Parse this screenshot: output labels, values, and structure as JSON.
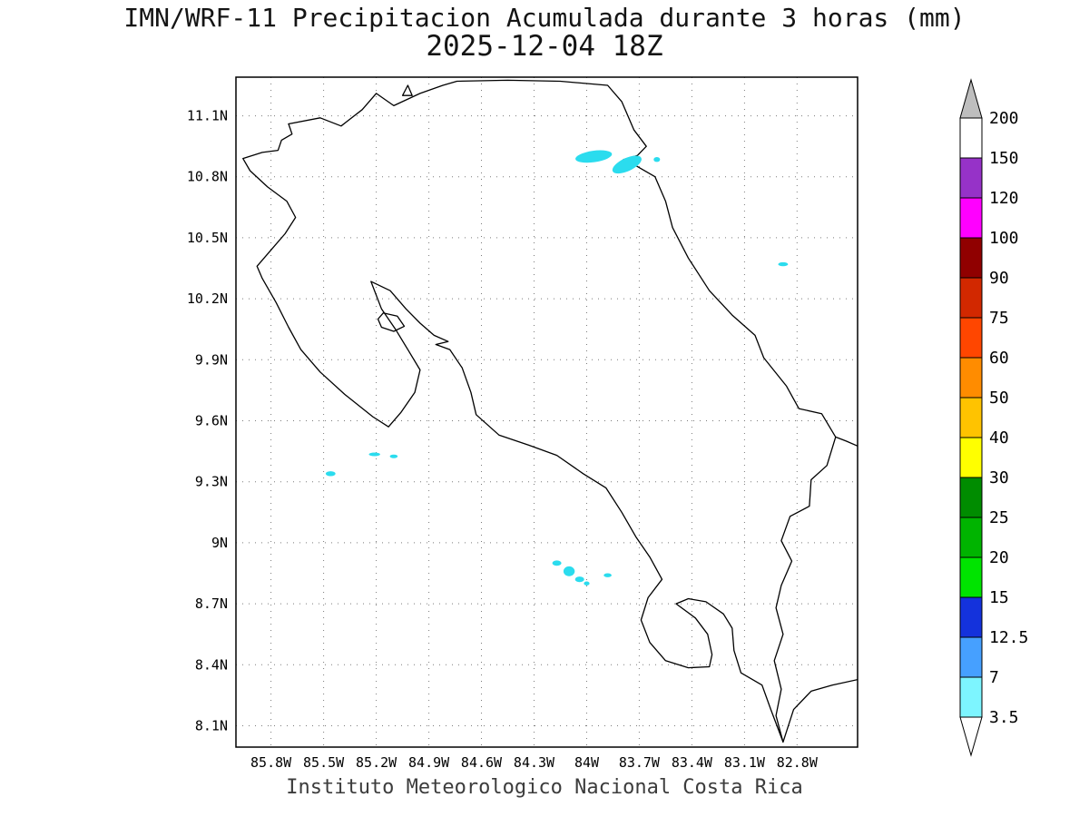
{
  "title": {
    "line1": "IMN/WRF-11 Precipitacion Acumulada durante 3 horas (mm)",
    "line2": "2025-12-04 18Z"
  },
  "caption": "Instituto Meteorologico Nacional Costa Rica",
  "chart_data": {
    "type": "heatmap",
    "title": "IMN/WRF-11 Precipitacion Acumulada durante 3 horas (mm)",
    "subtitle": "2025-12-04 18Z",
    "region": "Costa Rica",
    "units": "mm",
    "lon_range_w": [
      86.0,
      82.455
    ],
    "lat_range_n": [
      7.995,
      11.29
    ],
    "x_axis": {
      "ticks": [
        "85.8W",
        "85.5W",
        "85.2W",
        "84.9W",
        "84.6W",
        "84.3W",
        "84W",
        "83.7W",
        "83.4W",
        "83.1W",
        "82.8W"
      ],
      "values": [
        85.8,
        85.5,
        85.2,
        84.9,
        84.6,
        84.3,
        84.0,
        83.7,
        83.4,
        83.1,
        82.8
      ]
    },
    "y_axis": {
      "ticks": [
        "11.1N",
        "10.8N",
        "10.5N",
        "10.2N",
        "9.9N",
        "9.6N",
        "9.3N",
        "9N",
        "8.7N",
        "8.4N",
        "8.1N"
      ],
      "values": [
        11.1,
        10.8,
        10.5,
        10.2,
        9.9,
        9.6,
        9.3,
        9.0,
        8.7,
        8.4,
        8.1
      ]
    },
    "colorbar": {
      "levels": [
        3.5,
        7,
        12.5,
        15,
        20,
        25,
        30,
        40,
        50,
        60,
        75,
        90,
        100,
        120,
        150,
        200
      ],
      "labels": [
        "3.5",
        "7",
        "12.5",
        "15",
        "20",
        "25",
        "30",
        "40",
        "50",
        "60",
        "75",
        "90",
        "100",
        "120",
        "150",
        "200"
      ],
      "segment_colors": [
        "#7DF5FF",
        "#46A0FF",
        "#1432DC",
        "#00E400",
        "#00B400",
        "#008C00",
        "#FFFF00",
        "#FFC300",
        "#FF8C00",
        "#FF4600",
        "#D22800",
        "#900000",
        "#FF00FF",
        "#9632C8",
        "#FFFFFF"
      ],
      "under_color": "#FFFFFF",
      "over_color": "#BEBEBE"
    },
    "patch_color": "#2BDCEE",
    "patch_value_range_mm": "3.5-7",
    "precipitation_patches": [
      {
        "lon": 83.96,
        "lat": 10.9,
        "rx": 0.105,
        "ry": 0.028,
        "rot": -8
      },
      {
        "lon": 83.77,
        "lat": 10.86,
        "rx": 0.09,
        "ry": 0.032,
        "rot": -25
      },
      {
        "lon": 83.6,
        "lat": 10.885,
        "rx": 0.018,
        "ry": 0.012,
        "rot": 0
      },
      {
        "lon": 82.88,
        "lat": 10.37,
        "rx": 0.028,
        "ry": 0.01,
        "rot": 0
      },
      {
        "lon": 85.21,
        "lat": 9.435,
        "rx": 0.032,
        "ry": 0.009,
        "rot": 0
      },
      {
        "lon": 85.1,
        "lat": 9.425,
        "rx": 0.022,
        "ry": 0.009,
        "rot": 0
      },
      {
        "lon": 85.46,
        "lat": 9.34,
        "rx": 0.028,
        "ry": 0.012,
        "rot": 0
      },
      {
        "lon": 84.17,
        "lat": 8.9,
        "rx": 0.026,
        "ry": 0.013,
        "rot": 0
      },
      {
        "lon": 84.1,
        "lat": 8.86,
        "rx": 0.032,
        "ry": 0.024,
        "rot": 0
      },
      {
        "lon": 84.04,
        "lat": 8.82,
        "rx": 0.026,
        "ry": 0.014,
        "rot": 0
      },
      {
        "lon": 84.0,
        "lat": 8.8,
        "rx": 0.016,
        "ry": 0.01,
        "rot": 0
      },
      {
        "lon": 83.88,
        "lat": 8.84,
        "rx": 0.022,
        "ry": 0.01,
        "rot": 0
      }
    ],
    "map_layers": {
      "coastlines": [
        [
          [
            85.7,
            11.06
          ],
          [
            85.52,
            11.09
          ],
          [
            85.4,
            11.05
          ],
          [
            85.28,
            11.13
          ],
          [
            85.2,
            11.21
          ],
          [
            85.1,
            11.15
          ],
          [
            84.95,
            11.21
          ],
          [
            84.82,
            11.25
          ],
          [
            84.74,
            11.27
          ],
          [
            84.45,
            11.275
          ],
          [
            84.15,
            11.27
          ],
          [
            83.88,
            11.25
          ],
          [
            83.8,
            11.17
          ],
          [
            83.73,
            11.03
          ],
          [
            83.66,
            10.95
          ],
          [
            83.71,
            10.905
          ],
          [
            83.79,
            10.885
          ],
          [
            83.72,
            10.855
          ],
          [
            83.61,
            10.8
          ],
          [
            83.55,
            10.68
          ],
          [
            83.51,
            10.55
          ],
          [
            83.42,
            10.4
          ],
          [
            83.3,
            10.24
          ],
          [
            83.17,
            10.12
          ],
          [
            83.04,
            10.02
          ],
          [
            82.99,
            9.91
          ],
          [
            82.86,
            9.77
          ],
          [
            82.79,
            9.66
          ],
          [
            82.66,
            9.635
          ],
          [
            82.58,
            9.52
          ],
          [
            82.52,
            9.5
          ],
          [
            82.44,
            9.47
          ]
        ],
        [
          [
            82.58,
            9.52
          ],
          [
            82.63,
            9.38
          ],
          [
            82.72,
            9.31
          ],
          [
            82.73,
            9.18
          ],
          [
            82.84,
            9.13
          ],
          [
            82.89,
            9.01
          ],
          [
            82.83,
            8.91
          ],
          [
            82.89,
            8.79
          ],
          [
            82.92,
            8.68
          ],
          [
            82.88,
            8.55
          ],
          [
            82.93,
            8.42
          ],
          [
            82.89,
            8.28
          ],
          [
            82.92,
            8.15
          ],
          [
            82.88,
            8.02
          ]
        ],
        [
          [
            82.44,
            8.33
          ],
          [
            82.6,
            8.3
          ],
          [
            82.72,
            8.27
          ],
          [
            82.82,
            8.18
          ],
          [
            82.88,
            8.02
          ],
          [
            82.95,
            8.18
          ],
          [
            83.0,
            8.3
          ],
          [
            83.12,
            8.36
          ],
          [
            83.16,
            8.47
          ],
          [
            83.17,
            8.58
          ],
          [
            83.22,
            8.65
          ],
          [
            83.32,
            8.71
          ],
          [
            83.42,
            8.725
          ],
          [
            83.49,
            8.7
          ],
          [
            83.38,
            8.63
          ],
          [
            83.31,
            8.55
          ],
          [
            83.285,
            8.45
          ],
          [
            83.3,
            8.39
          ],
          [
            83.42,
            8.385
          ],
          [
            83.55,
            8.42
          ],
          [
            83.64,
            8.51
          ],
          [
            83.69,
            8.62
          ],
          [
            83.65,
            8.73
          ],
          [
            83.57,
            8.82
          ],
          [
            83.64,
            8.93
          ],
          [
            83.72,
            9.03
          ],
          [
            83.8,
            9.15
          ],
          [
            83.89,
            9.27
          ],
          [
            84.02,
            9.34
          ],
          [
            84.17,
            9.43
          ],
          [
            84.33,
            9.48
          ],
          [
            84.5,
            9.53
          ],
          [
            84.63,
            9.63
          ],
          [
            84.66,
            9.74
          ],
          [
            84.71,
            9.86
          ],
          [
            84.78,
            9.95
          ],
          [
            84.86,
            9.975
          ],
          [
            84.79,
            9.99
          ],
          [
            84.87,
            10.02
          ],
          [
            84.95,
            10.08
          ],
          [
            85.03,
            10.15
          ],
          [
            85.12,
            10.24
          ],
          [
            85.23,
            10.285
          ],
          [
            85.17,
            10.15
          ],
          [
            85.09,
            10.05
          ],
          [
            85.02,
            9.95
          ],
          [
            84.95,
            9.85
          ],
          [
            84.98,
            9.74
          ],
          [
            85.06,
            9.64
          ],
          [
            85.13,
            9.57
          ],
          [
            85.22,
            9.62
          ],
          [
            85.38,
            9.73
          ],
          [
            85.52,
            9.84
          ],
          [
            85.63,
            9.95
          ],
          [
            85.7,
            10.06
          ],
          [
            85.77,
            10.18
          ],
          [
            85.85,
            10.3
          ],
          [
            85.88,
            10.36
          ],
          [
            85.8,
            10.44
          ],
          [
            85.72,
            10.52
          ],
          [
            85.66,
            10.6
          ],
          [
            85.71,
            10.68
          ],
          [
            85.82,
            10.75
          ],
          [
            85.92,
            10.83
          ],
          [
            85.96,
            10.89
          ],
          [
            85.85,
            10.92
          ],
          [
            85.76,
            10.93
          ],
          [
            85.74,
            10.98
          ],
          [
            85.68,
            11.01
          ],
          [
            85.7,
            11.06
          ]
        ]
      ],
      "islands": [
        [
          [
            85.16,
            10.13
          ],
          [
            85.08,
            10.115
          ],
          [
            85.04,
            10.065
          ],
          [
            85.1,
            10.04
          ],
          [
            85.17,
            10.06
          ],
          [
            85.19,
            10.1
          ],
          [
            85.16,
            10.13
          ]
        ],
        [
          [
            85.05,
            11.2
          ],
          [
            84.995,
            11.2
          ],
          [
            85.02,
            11.25
          ],
          [
            85.05,
            11.2
          ]
        ]
      ]
    }
  }
}
